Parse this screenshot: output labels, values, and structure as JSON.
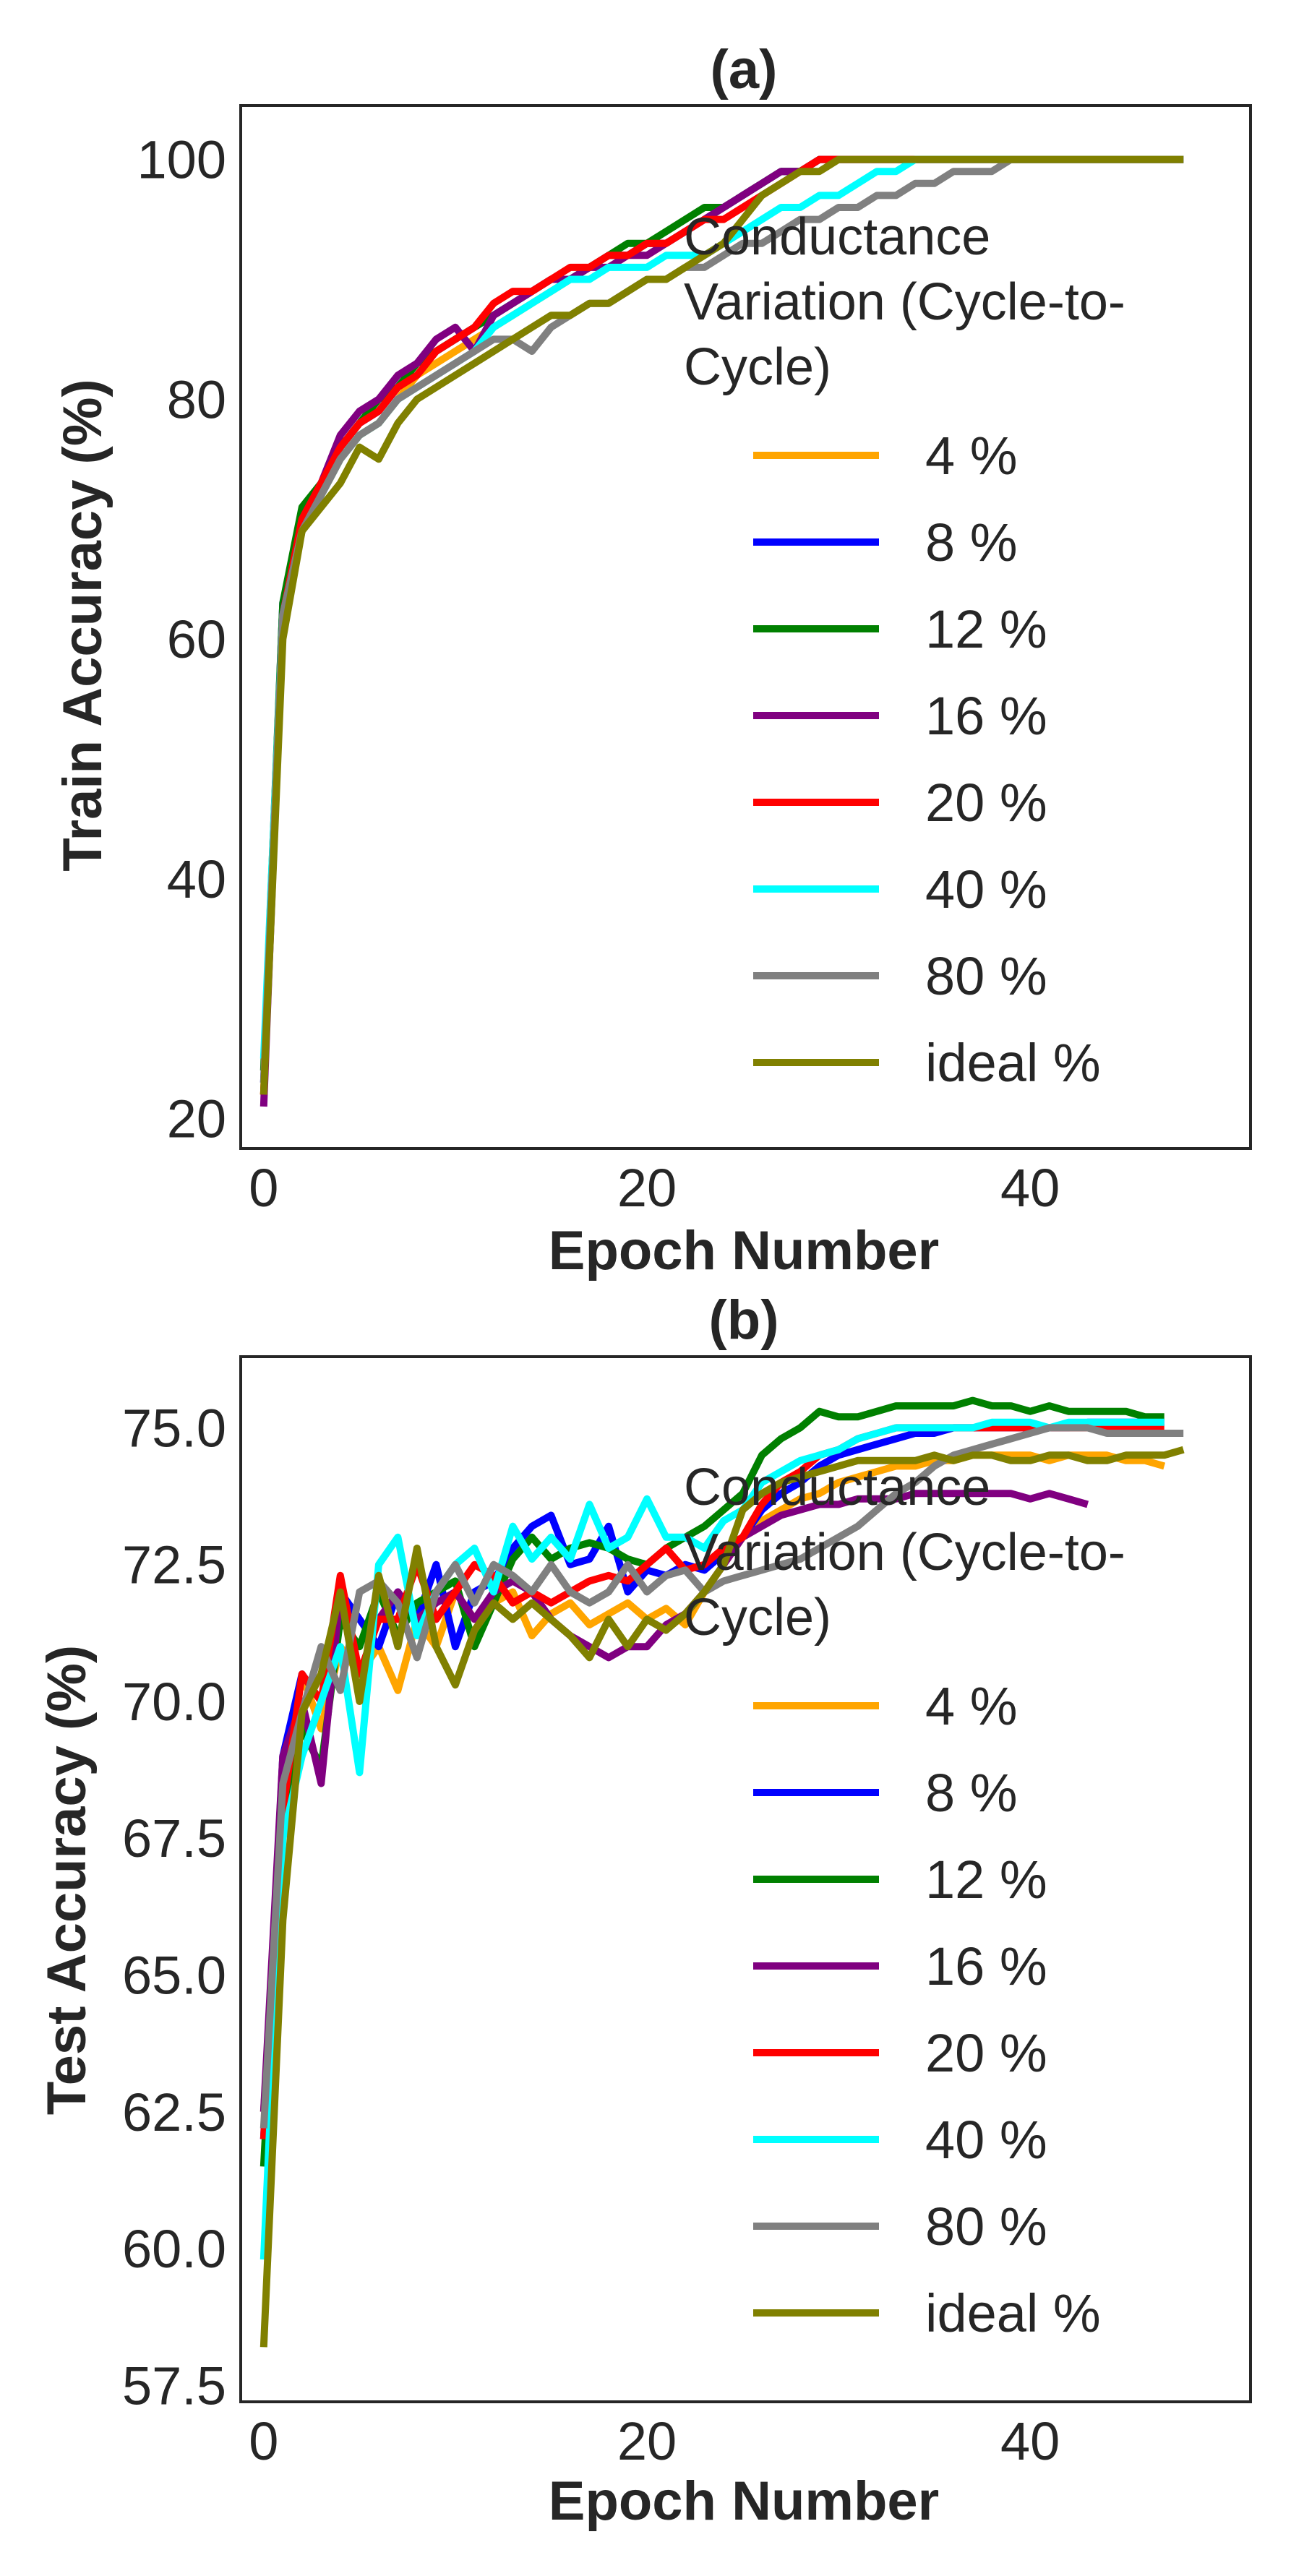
{
  "colors": {
    "text": "#262626",
    "frame": "#262626",
    "background": "#ffffff"
  },
  "legend": {
    "title_lines": [
      "Conductance",
      "Variation (Cycle-to-",
      "Cycle)"
    ],
    "placement": "right",
    "entries": [
      {
        "label": "4 %",
        "color": "#ffa500"
      },
      {
        "label": "8 %",
        "color": "#0000ff"
      },
      {
        "label": "12 %",
        "color": "#008000"
      },
      {
        "label": "16 %",
        "color": "#800080"
      },
      {
        "label": "20 %",
        "color": "#ff0000"
      },
      {
        "label": "40 %",
        "color": "#00ffff"
      },
      {
        "label": "80 %",
        "color": "#808080"
      },
      {
        "label": "ideal %",
        "color": "#808000"
      }
    ]
  },
  "chart_data": [
    {
      "type": "line",
      "title": "(a)",
      "xlabel": "Epoch Number",
      "ylabel": "Train Accuracy (%)",
      "xlim": [
        -1.2,
        51.5
      ],
      "ylim": [
        17.5,
        104.5
      ],
      "xticks": [
        0,
        20,
        40
      ],
      "xtick_labels": [
        "0",
        "20",
        "40"
      ],
      "yticks": [
        20,
        40,
        60,
        80,
        100
      ],
      "ytick_labels": [
        "20",
        "40",
        "60",
        "80",
        "100"
      ],
      "grid": false,
      "legend_placement": "center-right",
      "series": [
        {
          "name": "4 %",
          "color": "#ffa500",
          "y": [
            22,
            62,
            69,
            72,
            75,
            77,
            78,
            80,
            82,
            83,
            84,
            85,
            86,
            87,
            88,
            89,
            90,
            91,
            92,
            92,
            93,
            93,
            94,
            95,
            96,
            97,
            98,
            99,
            99,
            100,
            100,
            100,
            100,
            100,
            100,
            100,
            100,
            100,
            100,
            100,
            100,
            100,
            100,
            100,
            100,
            100,
            100,
            100,
            100
          ]
        },
        {
          "name": "8 %",
          "color": "#0000ff",
          "y": [
            23,
            63,
            70,
            73,
            76,
            78,
            79,
            81,
            83,
            84,
            85,
            86,
            87,
            88,
            89,
            90,
            90,
            91,
            92,
            92,
            93,
            93,
            94,
            95,
            96,
            97,
            98,
            99,
            99,
            100,
            100,
            100,
            100,
            100,
            100,
            100,
            100,
            100,
            100,
            100,
            100,
            100,
            100,
            100,
            100,
            100,
            100,
            100,
            100
          ]
        },
        {
          "name": "12 %",
          "color": "#008000",
          "y": [
            24,
            63,
            71,
            73,
            76,
            78,
            80,
            81,
            83,
            84,
            85,
            86,
            87,
            88,
            89,
            90,
            90,
            91,
            92,
            93,
            93,
            94,
            95,
            96,
            96,
            97,
            98,
            99,
            99,
            100,
            100,
            100,
            100,
            100,
            100,
            100,
            100,
            100,
            100,
            100,
            100,
            100,
            100,
            100,
            100,
            100,
            100,
            100,
            100
          ]
        },
        {
          "name": "16 %",
          "color": "#800080",
          "y": [
            21,
            62,
            70,
            73,
            77,
            79,
            80,
            82,
            83,
            85,
            86,
            84,
            87,
            88,
            89,
            90,
            90,
            91,
            91,
            92,
            92,
            93,
            94,
            95,
            96,
            97,
            98,
            99,
            99,
            100,
            100,
            100,
            100,
            100,
            100,
            100,
            100,
            100,
            100,
            100,
            100,
            100,
            100,
            100,
            100,
            100,
            100,
            100,
            100
          ]
        },
        {
          "name": "20 %",
          "color": "#ff0000",
          "y": [
            22,
            62,
            70,
            73,
            76,
            78,
            79,
            81,
            82,
            84,
            85,
            86,
            88,
            89,
            89,
            90,
            91,
            91,
            92,
            92,
            93,
            93,
            94,
            95,
            95,
            96,
            97,
            98,
            99,
            100,
            100,
            100,
            100,
            100,
            100,
            100,
            100,
            100,
            100,
            100,
            100,
            100,
            100,
            100,
            100,
            100,
            100,
            100,
            100
          ]
        },
        {
          "name": "40 %",
          "color": "#00ffff",
          "y": [
            25,
            62,
            69,
            72,
            75,
            77,
            78,
            80,
            81,
            82,
            83,
            84,
            86,
            87,
            88,
            89,
            90,
            90,
            91,
            91,
            91,
            92,
            92,
            92,
            93,
            94,
            95,
            96,
            96,
            97,
            97,
            98,
            99,
            99,
            100,
            100,
            100,
            100,
            100,
            100,
            100,
            100,
            100,
            100,
            100,
            100,
            100,
            100,
            100
          ]
        },
        {
          "name": "80 %",
          "color": "#808080",
          "y": [
            23,
            62,
            69,
            72,
            75,
            77,
            78,
            80,
            81,
            82,
            83,
            84,
            85,
            85,
            84,
            86,
            87,
            88,
            88,
            89,
            90,
            90,
            91,
            91,
            92,
            93,
            93,
            94,
            95,
            95,
            96,
            96,
            97,
            97,
            98,
            98,
            99,
            99,
            99,
            100,
            100,
            100,
            100,
            100,
            100,
            100,
            100,
            100,
            100
          ]
        },
        {
          "name": "ideal %",
          "color": "#808000",
          "y": [
            22,
            60,
            69,
            71,
            73,
            76,
            75,
            78,
            80,
            81,
            82,
            83,
            84,
            85,
            86,
            87,
            87,
            88,
            88,
            89,
            90,
            90,
            91,
            92,
            93,
            95,
            97,
            98,
            99,
            99,
            100,
            100,
            100,
            100,
            100,
            100,
            100,
            100,
            100,
            100,
            100,
            100,
            100,
            100,
            100,
            100,
            100,
            100,
            100
          ]
        }
      ]
    },
    {
      "type": "line",
      "title": "(b)",
      "xlabel": "Epoch Number",
      "ylabel": "Test Accuracy (%)",
      "xlim": [
        -1.2,
        51.5
      ],
      "ylim": [
        57.2,
        76.3
      ],
      "xticks": [
        0,
        20,
        40
      ],
      "xtick_labels": [
        "0",
        "20",
        "40"
      ],
      "yticks": [
        57.5,
        60.0,
        62.5,
        65.0,
        67.5,
        70.0,
        72.5,
        75.0
      ],
      "ytick_labels": [
        "57.5",
        "60.0",
        "62.5",
        "65.0",
        "67.5",
        "70.0",
        "72.5",
        "75.0"
      ],
      "grid": false,
      "legend_placement": "center-right",
      "series": [
        {
          "name": "4 %",
          "color": "#ffa500",
          "y": [
            62.5,
            68.0,
            70.5,
            69.5,
            71.0,
            70.5,
            71.0,
            70.2,
            71.5,
            71.0,
            72.0,
            71.5,
            71.8,
            72.0,
            71.2,
            71.6,
            71.8,
            71.4,
            71.6,
            71.8,
            71.5,
            71.7,
            71.4,
            72.0,
            72.5,
            73.0,
            73.3,
            73.5,
            73.7,
            73.8,
            74.0,
            74.1,
            74.2,
            74.3,
            74.3,
            74.4,
            74.4,
            74.5,
            74.5,
            74.5,
            74.5,
            74.4,
            74.5,
            74.5,
            74.5,
            74.4,
            74.4,
            74.3
          ]
        },
        {
          "name": "8 %",
          "color": "#0000ff",
          "y": [
            62.0,
            69.0,
            70.5,
            70.0,
            72.0,
            71.5,
            71.0,
            72.0,
            71.5,
            72.5,
            71.0,
            72.0,
            72.2,
            72.8,
            73.2,
            73.4,
            72.5,
            72.6,
            73.2,
            72.0,
            72.4,
            72.3,
            72.5,
            72.4,
            72.7,
            73.0,
            73.5,
            73.8,
            74.0,
            74.3,
            74.5,
            74.6,
            74.7,
            74.8,
            74.9,
            74.9,
            75.0,
            75.0,
            75.0,
            75.0,
            75.0,
            75.0,
            75.0,
            75.1,
            75.1,
            75.1,
            75.1,
            75.1
          ]
        },
        {
          "name": "12 %",
          "color": "#008000",
          "y": [
            61.5,
            68.0,
            69.5,
            68.8,
            71.5,
            71.0,
            72.0,
            71.2,
            71.8,
            72.0,
            72.2,
            71.0,
            71.8,
            72.6,
            73.0,
            72.6,
            72.8,
            72.9,
            72.8,
            72.6,
            72.5,
            72.8,
            73.0,
            73.2,
            73.5,
            73.8,
            74.5,
            74.8,
            75.0,
            75.3,
            75.2,
            75.2,
            75.3,
            75.4,
            75.4,
            75.4,
            75.4,
            75.5,
            75.4,
            75.4,
            75.3,
            75.4,
            75.3,
            75.3,
            75.3,
            75.3,
            75.2,
            75.2
          ]
        },
        {
          "name": "16 %",
          "color": "#800080",
          "y": [
            62.5,
            69.0,
            70.0,
            68.5,
            72.0,
            70.5,
            71.5,
            72.0,
            71.5,
            71.8,
            72.0,
            71.5,
            72.0,
            72.2,
            72.0,
            71.5,
            71.2,
            71.0,
            70.8,
            71.0,
            71.0,
            71.4,
            71.6,
            72.0,
            72.5,
            73.0,
            73.2,
            73.4,
            73.5,
            73.6,
            73.6,
            73.7,
            73.7,
            73.7,
            73.8,
            73.8,
            73.8,
            73.8,
            73.8,
            73.8,
            73.7,
            73.8,
            73.7,
            73.6
          ]
        },
        {
          "name": "20 %",
          "color": "#ff0000",
          "y": [
            62.0,
            68.0,
            70.5,
            70.0,
            72.3,
            70.5,
            71.5,
            71.5,
            72.5,
            71.5,
            72.0,
            72.5,
            72.3,
            71.8,
            72.0,
            71.8,
            72.0,
            72.2,
            72.3,
            72.2,
            72.5,
            72.8,
            72.4,
            72.5,
            72.8,
            73.0,
            73.6,
            74.0,
            74.2,
            74.5,
            74.6,
            74.8,
            74.9,
            75.0,
            75.0,
            75.0,
            75.0,
            75.0,
            75.0,
            75.0,
            75.0,
            75.0,
            75.0,
            75.0,
            75.0,
            75.0,
            75.0,
            75.0
          ]
        },
        {
          "name": "40 %",
          "color": "#00ffff",
          "y": [
            59.8,
            67.5,
            69.0,
            70.0,
            71.0,
            68.7,
            72.5,
            73.0,
            71.2,
            72.0,
            72.5,
            72.8,
            72.0,
            73.2,
            72.6,
            73.0,
            72.6,
            73.6,
            72.8,
            73.0,
            73.7,
            73.0,
            73.0,
            72.8,
            73.3,
            73.5,
            74.0,
            74.2,
            74.4,
            74.5,
            74.6,
            74.8,
            74.9,
            75.0,
            75.0,
            75.0,
            75.0,
            75.0,
            75.1,
            75.1,
            75.1,
            75.0,
            75.1,
            75.1,
            75.1,
            75.1,
            75.1,
            75.1
          ]
        },
        {
          "name": "80 %",
          "color": "#808080",
          "y": [
            62.2,
            68.5,
            69.8,
            71.0,
            70.2,
            72.0,
            72.2,
            71.8,
            70.8,
            72.0,
            72.5,
            71.8,
            72.5,
            72.3,
            72.0,
            72.5,
            72.0,
            71.8,
            72.0,
            72.5,
            72.0,
            72.3,
            72.4,
            72.0,
            72.2,
            72.3,
            72.4,
            72.5,
            72.6,
            72.8,
            73.0,
            73.2,
            73.5,
            73.8,
            74.0,
            74.3,
            74.5,
            74.6,
            74.7,
            74.8,
            74.9,
            75.0,
            75.0,
            75.0,
            74.9,
            74.9,
            74.9,
            74.9,
            74.9
          ]
        },
        {
          "name": "ideal %",
          "color": "#808000",
          "y": [
            58.2,
            66.0,
            69.8,
            70.5,
            72.0,
            70.0,
            72.3,
            71.0,
            72.8,
            71.0,
            70.3,
            71.3,
            71.8,
            71.5,
            71.8,
            71.5,
            71.2,
            70.8,
            71.5,
            71.0,
            71.5,
            71.3,
            71.6,
            72.0,
            72.5,
            73.5,
            73.8,
            74.0,
            74.1,
            74.2,
            74.3,
            74.4,
            74.4,
            74.4,
            74.4,
            74.5,
            74.4,
            74.5,
            74.5,
            74.4,
            74.4,
            74.5,
            74.5,
            74.4,
            74.4,
            74.5,
            74.5,
            74.5,
            74.6
          ]
        }
      ]
    }
  ]
}
